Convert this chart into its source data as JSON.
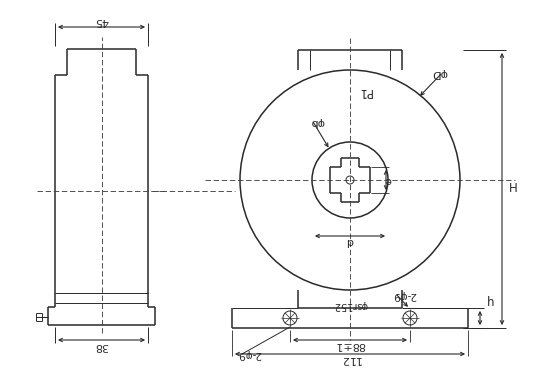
{
  "bg_color": "#ffffff",
  "line_color": "#2a2a2a",
  "dim_color": "#2a2a2a",
  "center_line_color": "#444444",
  "figsize": [
    5.42,
    3.85
  ],
  "dpi": 100,
  "labels": {
    "dim_45": "45",
    "dim_38": "38",
    "dim_H": "H",
    "dim_h": "h",
    "dim_D": "φD",
    "dim_b": "φb",
    "dim_e": "e",
    "dim_P1": "P1",
    "dim_d": "d",
    "dim_2phi9": "2-φ9",
    "dim_88_1": "88±1",
    "dim_112": "112",
    "dim_sr152": "φsr152"
  }
}
